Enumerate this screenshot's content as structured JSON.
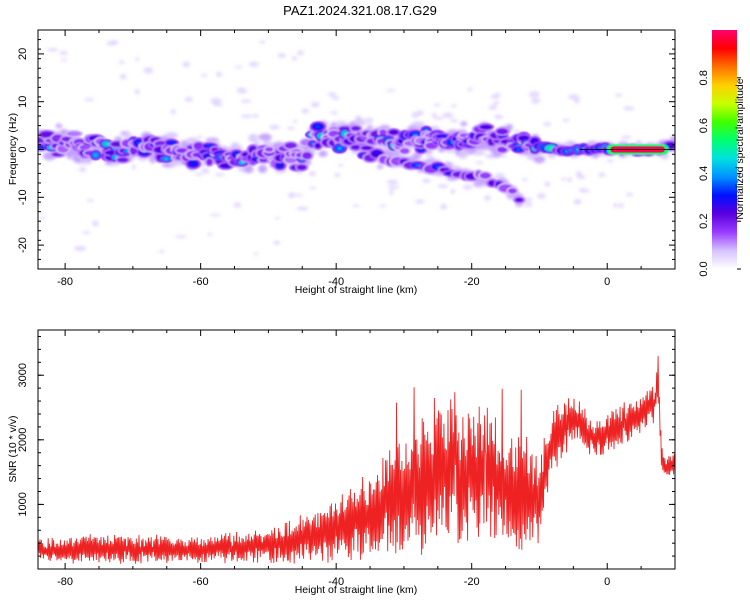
{
  "title": "PAZ1.2024.321.08.17.G29",
  "chart_data": [
    {
      "type": "heatmap",
      "xlabel": "Height of straight line (km)",
      "ylabel": "Frequency (Hz)",
      "xlim": [
        -84,
        10
      ],
      "ylim": [
        -25,
        25
      ],
      "xticks": [
        -80,
        -60,
        -40,
        -20,
        0
      ],
      "yticks": [
        -20,
        -10,
        0,
        10,
        20
      ],
      "colorbar": {
        "label": "Normalized spectral amplitude",
        "range": [
          0,
          1
        ],
        "ticks": [
          "0.0",
          "0.2",
          "0.4",
          "0.6",
          "0.8"
        ],
        "colormap": [
          "#ffffff",
          "#d6c2ff",
          "#9a3cff",
          "#5a00e0",
          "#0010ff",
          "#0090ff",
          "#00e0e0",
          "#00ff70",
          "#40ff00",
          "#c8ff00",
          "#ffd000",
          "#ff7000",
          "#ff0000",
          "#ff0070"
        ]
      },
      "band_center": [
        {
          "x": -83,
          "y": 2.0
        },
        {
          "x": -78,
          "y": 0.5
        },
        {
          "x": -72,
          "y": 0.0
        },
        {
          "x": -66,
          "y": 0.5
        },
        {
          "x": -60,
          "y": -0.5
        },
        {
          "x": -55,
          "y": -2.0
        },
        {
          "x": -50,
          "y": -1.0
        },
        {
          "x": -45,
          "y": -2.0
        },
        {
          "x": -43,
          "y": 3.0
        },
        {
          "x": -38,
          "y": 2.5
        },
        {
          "x": -33,
          "y": 2.0
        },
        {
          "x": -28,
          "y": 2.0
        },
        {
          "x": -22,
          "y": 1.5
        },
        {
          "x": -16,
          "y": 2.0
        },
        {
          "x": -12,
          "y": 1.0
        },
        {
          "x": -8,
          "y": 0.0
        },
        {
          "x": 0,
          "y": 0.0
        },
        {
          "x": 8,
          "y": 0.0
        },
        {
          "x": 10,
          "y": 1.5
        }
      ],
      "lower_branch": [
        {
          "x": -36,
          "y": -1.0
        },
        {
          "x": -30,
          "y": -2.5
        },
        {
          "x": -25,
          "y": -4.0
        },
        {
          "x": -20,
          "y": -5.5
        },
        {
          "x": -15,
          "y": -7.5
        },
        {
          "x": -13,
          "y": -10.5
        }
      ],
      "peak_segment": {
        "x": [
          2,
          7
        ],
        "y": 0.0,
        "amplitude": 0.98
      }
    },
    {
      "type": "line",
      "xlabel": "Height of straight line (km)",
      "ylabel": "SNR (10 * v/v)",
      "xlim": [
        -84,
        10
      ],
      "ylim": [
        0,
        3700
      ],
      "xticks": [
        -80,
        -60,
        -40,
        -20,
        0
      ],
      "yticks": [
        1000,
        2000,
        3000
      ],
      "series": [
        {
          "color": "#ee2222",
          "x": [
            -84,
            -80,
            -75,
            -70,
            -65,
            -60,
            -55,
            -50,
            -46,
            -42,
            -38,
            -34,
            -32,
            -30,
            -28,
            -26,
            -24,
            -22,
            -20,
            -18,
            -16,
            -14,
            -12,
            -10,
            -9,
            -8,
            -6,
            -5,
            -4,
            -3,
            -2,
            -1,
            0,
            1,
            2,
            3,
            4,
            5,
            6,
            7,
            7.5,
            8,
            8.5,
            9,
            10
          ],
          "values": [
            280,
            300,
            320,
            300,
            310,
            290,
            330,
            380,
            450,
            550,
            700,
            900,
            1100,
            1200,
            1300,
            1450,
            1600,
            1500,
            1450,
            1500,
            1350,
            1250,
            1200,
            1050,
            1600,
            2000,
            2200,
            2300,
            2300,
            2150,
            2000,
            2050,
            2100,
            2150,
            2200,
            2300,
            2350,
            2400,
            2500,
            2550,
            3000,
            1700,
            1550,
            1600,
            1650
          ],
          "amplitude": [
            150,
            170,
            180,
            170,
            170,
            160,
            190,
            230,
            300,
            380,
            450,
            580,
            700,
            750,
            780,
            900,
            950,
            900,
            850,
            850,
            800,
            750,
            700,
            600,
            500,
            450,
            350,
            300,
            300,
            280,
            260,
            260,
            250,
            250,
            250,
            250,
            250,
            250,
            250,
            250,
            350,
            200,
            150,
            150,
            150
          ]
        }
      ]
    }
  ]
}
